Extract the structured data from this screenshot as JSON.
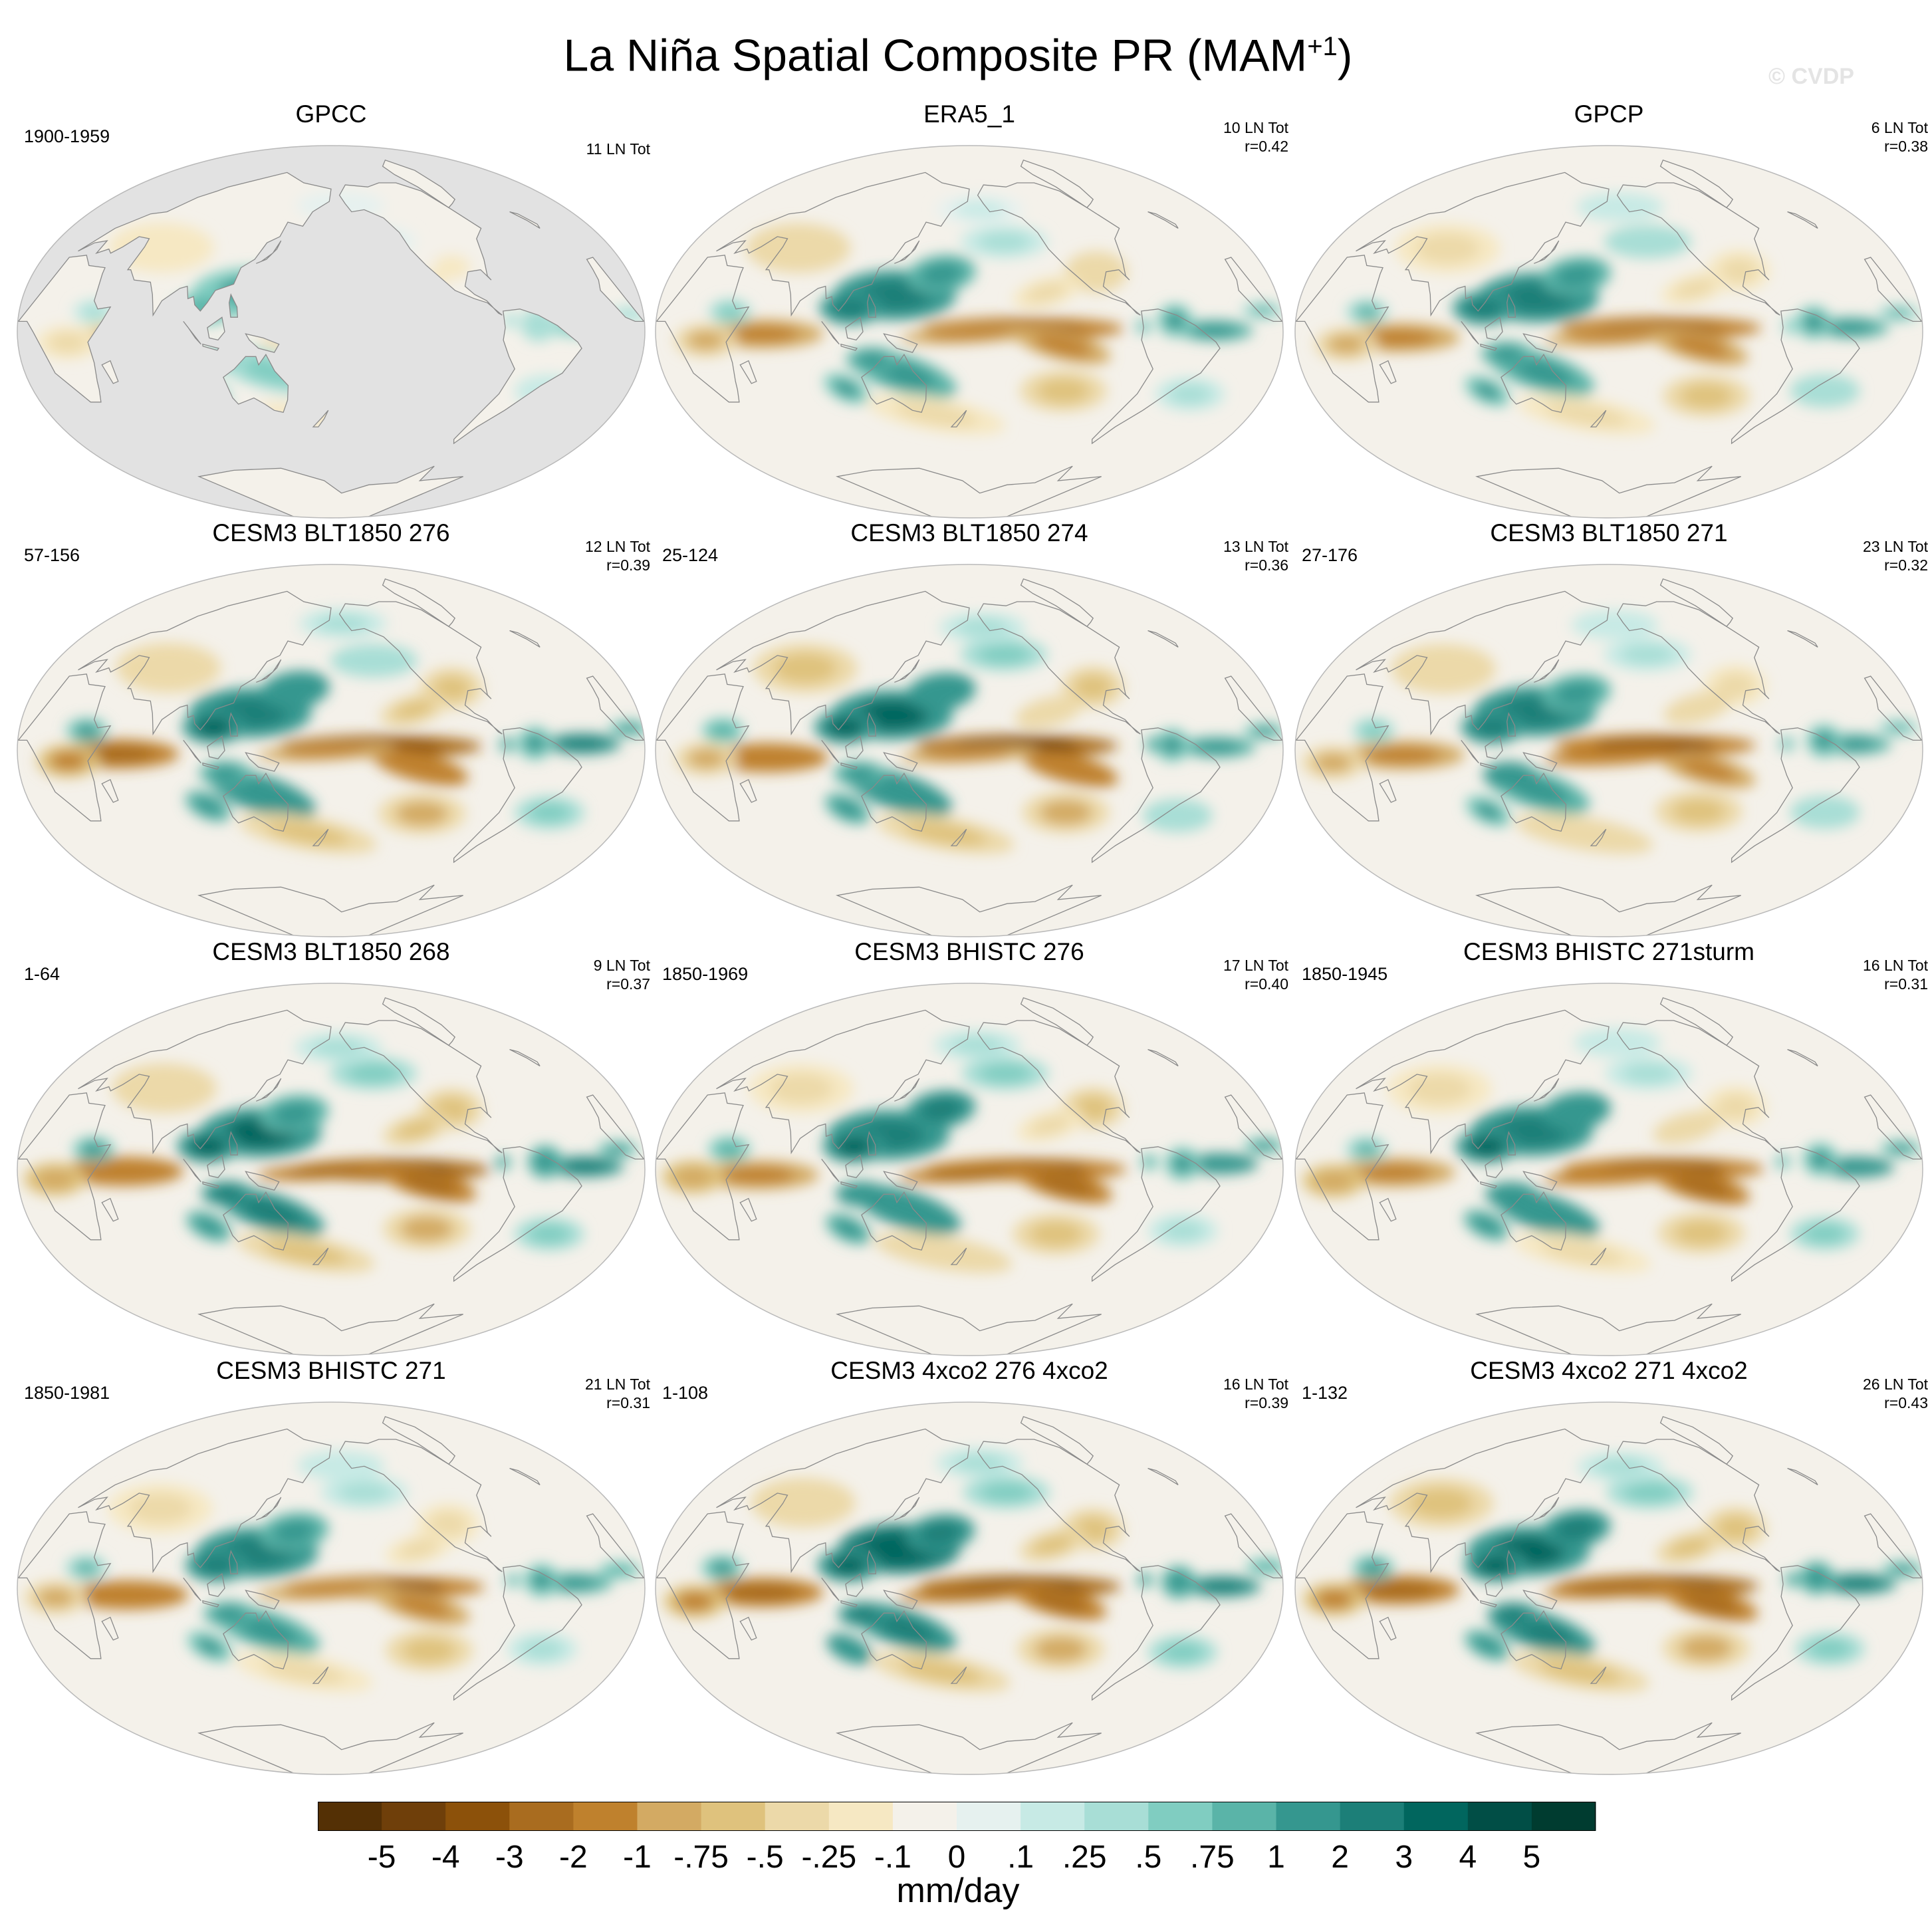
{
  "figure": {
    "title_main": "La Niña Spatial Composite PR (MAM",
    "title_sup": "+1",
    "title_close": ")",
    "watermark": "© CVDP",
    "units": "mm/day"
  },
  "colorbar": {
    "labels": [
      "-5",
      "-4",
      "-3",
      "-2",
      "-1",
      "-.75",
      "-.5",
      "-.25",
      "-.1",
      "0",
      ".1",
      ".25",
      ".5",
      ".75",
      "1",
      "2",
      "3",
      "4",
      "5"
    ],
    "colors": [
      "#543005",
      "#6f3f0a",
      "#8c510a",
      "#a96c1f",
      "#bf812d",
      "#d3aa63",
      "#dfc27d",
      "#ecd9a9",
      "#f6e8c3",
      "#f4f1ea",
      "#e6f1ef",
      "#c7eae5",
      "#a8ded6",
      "#80cdc1",
      "#5ab4a8",
      "#35978f",
      "#1c7f78",
      "#01665e",
      "#014e46",
      "#003c30"
    ]
  },
  "style": {
    "land_gray": "#e2e2e2",
    "coast": "#8a8a8a",
    "outline": "#b9b9b9"
  },
  "panels": [
    {
      "title": "GPCC",
      "period": "1900-1959",
      "count": "11 LN Tot",
      "r": "",
      "land_only": true,
      "intensity": 0.35
    },
    {
      "title": "ERA5_1",
      "period": "",
      "count": "10 LN Tot",
      "r": "r=0.42",
      "land_only": false,
      "intensity": 0.85
    },
    {
      "title": "GPCP",
      "period": "",
      "count": "6 LN Tot",
      "r": "r=0.38",
      "land_only": false,
      "intensity": 0.8
    },
    {
      "title": "CESM3 BLT1850 276",
      "period": "57-156",
      "count": "12 LN Tot",
      "r": "r=0.39",
      "land_only": false,
      "intensity": 1.0
    },
    {
      "title": "CESM3 BLT1850 274",
      "period": "25-124",
      "count": "13 LN Tot",
      "r": "r=0.36",
      "land_only": false,
      "intensity": 1.0
    },
    {
      "title": "CESM3 BLT1850 271",
      "period": "27-176",
      "count": "23 LN Tot",
      "r": "r=0.32",
      "land_only": false,
      "intensity": 0.85
    },
    {
      "title": "CESM3 BLT1850 268",
      "period": "1-64",
      "count": "9 LN Tot",
      "r": "r=0.37",
      "land_only": false,
      "intensity": 1.05
    },
    {
      "title": "CESM3 BHISTC 276",
      "period": "1850-1969",
      "count": "17 LN Tot",
      "r": "r=0.40",
      "land_only": false,
      "intensity": 0.95
    },
    {
      "title": "CESM3 BHISTC 271sturm",
      "period": "1850-1945",
      "count": "16 LN Tot",
      "r": "r=0.31",
      "land_only": false,
      "intensity": 0.9
    },
    {
      "title": "CESM3 BHISTC 271",
      "period": "1850-1981",
      "count": "21 LN Tot",
      "r": "r=0.31",
      "land_only": false,
      "intensity": 0.8
    },
    {
      "title": "CESM3 4xco2 276 4xco2",
      "period": "1-108",
      "count": "16 LN Tot",
      "r": "r=0.39",
      "land_only": false,
      "intensity": 1.15
    },
    {
      "title": "CESM3 4xco2 271 4xco2",
      "period": "1-132",
      "count": "26 LN Tot",
      "r": "r=0.43",
      "land_only": false,
      "intensity": 1.15
    }
  ]
}
